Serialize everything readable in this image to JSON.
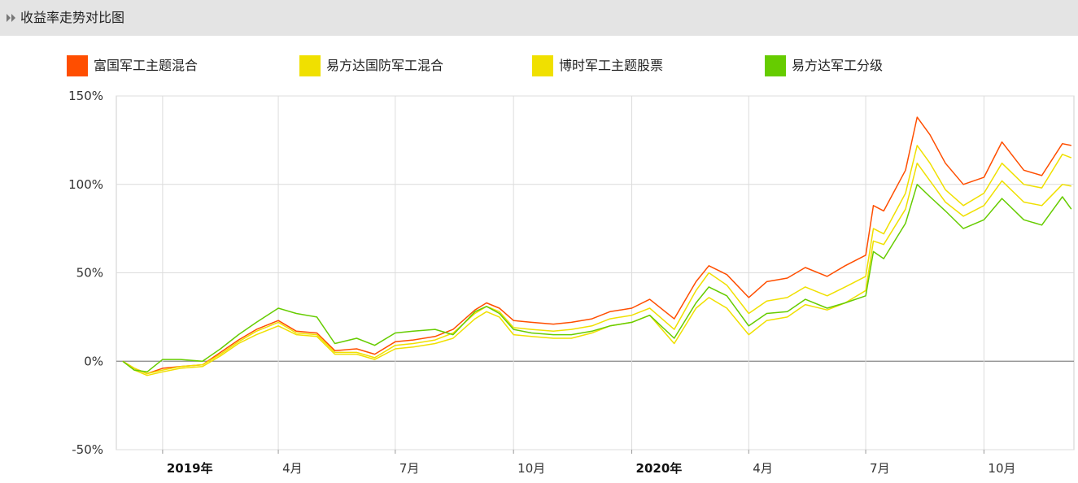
{
  "header": {
    "title": "收益率走势对比图",
    "icon": "double-chevron-right-icon"
  },
  "legend": [
    {
      "label": "富国军工主题混合",
      "color": "#ff4e00"
    },
    {
      "label": "易方达国防军工混合",
      "color": "#f0e000"
    },
    {
      "label": "博时军工主题股票",
      "color": "#f0e000"
    },
    {
      "label": "易方达军工分级",
      "color": "#66cc00"
    }
  ],
  "chart_data": {
    "type": "line",
    "ylim": [
      -50,
      150
    ],
    "y_ticks": [
      {
        "value": 150,
        "label": "150%"
      },
      {
        "value": 100,
        "label": "100%"
      },
      {
        "value": 50,
        "label": "50%"
      },
      {
        "value": 0,
        "label": "0%"
      },
      {
        "value": -50,
        "label": "-50%"
      }
    ],
    "xlim": [
      "2018-11-26",
      "2020-12-10"
    ],
    "x_ticks": [
      {
        "date": "2019-01-01",
        "label": "2019年",
        "bold": true
      },
      {
        "date": "2019-04-01",
        "label": "4月",
        "bold": false
      },
      {
        "date": "2019-07-01",
        "label": "7月",
        "bold": false
      },
      {
        "date": "2019-10-01",
        "label": "10月",
        "bold": false
      },
      {
        "date": "2020-01-01",
        "label": "2020年",
        "bold": true
      },
      {
        "date": "2020-04-01",
        "label": "4月",
        "bold": false
      },
      {
        "date": "2020-07-01",
        "label": "7月",
        "bold": false
      },
      {
        "date": "2020-10-01",
        "label": "10月",
        "bold": false
      }
    ],
    "grid": true,
    "series": [
      {
        "name": "富国军工主题混合",
        "color": "#ff4e00",
        "points": [
          [
            "2018-12-01",
            0
          ],
          [
            "2018-12-10",
            -4
          ],
          [
            "2018-12-20",
            -7
          ],
          [
            "2019-01-01",
            -4
          ],
          [
            "2019-01-15",
            -3
          ],
          [
            "2019-02-01",
            -2
          ],
          [
            "2019-02-15",
            5
          ],
          [
            "2019-03-01",
            12
          ],
          [
            "2019-03-15",
            18
          ],
          [
            "2019-04-01",
            23
          ],
          [
            "2019-04-15",
            17
          ],
          [
            "2019-05-01",
            16
          ],
          [
            "2019-05-15",
            6
          ],
          [
            "2019-06-01",
            7
          ],
          [
            "2019-06-15",
            4
          ],
          [
            "2019-07-01",
            11
          ],
          [
            "2019-07-15",
            12
          ],
          [
            "2019-08-01",
            14
          ],
          [
            "2019-08-15",
            18
          ],
          [
            "2019-09-01",
            29
          ],
          [
            "2019-09-10",
            33
          ],
          [
            "2019-09-20",
            30
          ],
          [
            "2019-10-01",
            23
          ],
          [
            "2019-10-15",
            22
          ],
          [
            "2019-11-01",
            21
          ],
          [
            "2019-11-15",
            22
          ],
          [
            "2019-12-01",
            24
          ],
          [
            "2019-12-15",
            28
          ],
          [
            "2020-01-01",
            30
          ],
          [
            "2020-01-15",
            35
          ],
          [
            "2020-02-03",
            24
          ],
          [
            "2020-02-20",
            45
          ],
          [
            "2020-03-01",
            54
          ],
          [
            "2020-03-15",
            49
          ],
          [
            "2020-04-01",
            36
          ],
          [
            "2020-04-15",
            45
          ],
          [
            "2020-05-01",
            47
          ],
          [
            "2020-05-15",
            53
          ],
          [
            "2020-06-01",
            48
          ],
          [
            "2020-06-15",
            54
          ],
          [
            "2020-07-01",
            60
          ],
          [
            "2020-07-07",
            88
          ],
          [
            "2020-07-15",
            85
          ],
          [
            "2020-08-01",
            108
          ],
          [
            "2020-08-10",
            138
          ],
          [
            "2020-08-20",
            128
          ],
          [
            "2020-09-01",
            112
          ],
          [
            "2020-09-15",
            100
          ],
          [
            "2020-10-01",
            104
          ],
          [
            "2020-10-15",
            124
          ],
          [
            "2020-11-01",
            108
          ],
          [
            "2020-11-15",
            105
          ],
          [
            "2020-12-01",
            123
          ],
          [
            "2020-12-08",
            122
          ]
        ]
      },
      {
        "name": "易方达国防军工混合",
        "color": "#f0e000",
        "points": [
          [
            "2018-12-01",
            0
          ],
          [
            "2018-12-10",
            -4
          ],
          [
            "2018-12-20",
            -7
          ],
          [
            "2019-01-01",
            -5
          ],
          [
            "2019-01-15",
            -3
          ],
          [
            "2019-02-01",
            -2
          ],
          [
            "2019-02-15",
            4
          ],
          [
            "2019-03-01",
            11
          ],
          [
            "2019-03-15",
            17
          ],
          [
            "2019-04-01",
            22
          ],
          [
            "2019-04-15",
            16
          ],
          [
            "2019-05-01",
            15
          ],
          [
            "2019-05-15",
            5
          ],
          [
            "2019-06-01",
            5
          ],
          [
            "2019-06-15",
            2
          ],
          [
            "2019-07-01",
            9
          ],
          [
            "2019-07-15",
            10
          ],
          [
            "2019-08-01",
            12
          ],
          [
            "2019-08-15",
            16
          ],
          [
            "2019-09-01",
            27
          ],
          [
            "2019-09-10",
            31
          ],
          [
            "2019-09-20",
            28
          ],
          [
            "2019-10-01",
            19
          ],
          [
            "2019-10-15",
            18
          ],
          [
            "2019-11-01",
            17
          ],
          [
            "2019-11-15",
            18
          ],
          [
            "2019-12-01",
            20
          ],
          [
            "2019-12-15",
            24
          ],
          [
            "2020-01-01",
            26
          ],
          [
            "2020-01-15",
            30
          ],
          [
            "2020-02-03",
            18
          ],
          [
            "2020-02-20",
            40
          ],
          [
            "2020-03-01",
            50
          ],
          [
            "2020-03-15",
            43
          ],
          [
            "2020-04-01",
            27
          ],
          [
            "2020-04-15",
            34
          ],
          [
            "2020-05-01",
            36
          ],
          [
            "2020-05-15",
            42
          ],
          [
            "2020-06-01",
            37
          ],
          [
            "2020-06-15",
            42
          ],
          [
            "2020-07-01",
            48
          ],
          [
            "2020-07-07",
            75
          ],
          [
            "2020-07-15",
            72
          ],
          [
            "2020-08-01",
            95
          ],
          [
            "2020-08-10",
            122
          ],
          [
            "2020-08-20",
            112
          ],
          [
            "2020-09-01",
            97
          ],
          [
            "2020-09-15",
            88
          ],
          [
            "2020-10-01",
            95
          ],
          [
            "2020-10-15",
            112
          ],
          [
            "2020-11-01",
            100
          ],
          [
            "2020-11-15",
            98
          ],
          [
            "2020-12-01",
            117
          ],
          [
            "2020-12-08",
            115
          ]
        ]
      },
      {
        "name": "博时军工主题股票",
        "color": "#f0e000",
        "points": [
          [
            "2018-12-01",
            0
          ],
          [
            "2018-12-10",
            -5
          ],
          [
            "2018-12-20",
            -8
          ],
          [
            "2019-01-01",
            -6
          ],
          [
            "2019-01-15",
            -4
          ],
          [
            "2019-02-01",
            -3
          ],
          [
            "2019-02-15",
            3
          ],
          [
            "2019-03-01",
            10
          ],
          [
            "2019-03-15",
            15
          ],
          [
            "2019-04-01",
            20
          ],
          [
            "2019-04-15",
            15
          ],
          [
            "2019-05-01",
            14
          ],
          [
            "2019-05-15",
            4
          ],
          [
            "2019-06-01",
            4
          ],
          [
            "2019-06-15",
            1
          ],
          [
            "2019-07-01",
            7
          ],
          [
            "2019-07-15",
            8
          ],
          [
            "2019-08-01",
            10
          ],
          [
            "2019-08-15",
            13
          ],
          [
            "2019-09-01",
            24
          ],
          [
            "2019-09-10",
            28
          ],
          [
            "2019-09-20",
            25
          ],
          [
            "2019-10-01",
            15
          ],
          [
            "2019-10-15",
            14
          ],
          [
            "2019-11-01",
            13
          ],
          [
            "2019-11-15",
            13
          ],
          [
            "2019-12-01",
            16
          ],
          [
            "2019-12-15",
            20
          ],
          [
            "2020-01-01",
            22
          ],
          [
            "2020-01-15",
            26
          ],
          [
            "2020-02-03",
            10
          ],
          [
            "2020-02-20",
            30
          ],
          [
            "2020-03-01",
            36
          ],
          [
            "2020-03-15",
            30
          ],
          [
            "2020-04-01",
            15
          ],
          [
            "2020-04-15",
            23
          ],
          [
            "2020-05-01",
            25
          ],
          [
            "2020-05-15",
            32
          ],
          [
            "2020-06-01",
            29
          ],
          [
            "2020-06-15",
            33
          ],
          [
            "2020-07-01",
            40
          ],
          [
            "2020-07-07",
            68
          ],
          [
            "2020-07-15",
            66
          ],
          [
            "2020-08-01",
            86
          ],
          [
            "2020-08-10",
            112
          ],
          [
            "2020-08-20",
            102
          ],
          [
            "2020-09-01",
            90
          ],
          [
            "2020-09-15",
            82
          ],
          [
            "2020-10-01",
            88
          ],
          [
            "2020-10-15",
            102
          ],
          [
            "2020-11-01",
            90
          ],
          [
            "2020-11-15",
            88
          ],
          [
            "2020-12-01",
            100
          ],
          [
            "2020-12-08",
            99
          ]
        ]
      },
      {
        "name": "易方达军工分级",
        "color": "#66cc00",
        "points": [
          [
            "2018-12-01",
            0
          ],
          [
            "2018-12-10",
            -5
          ],
          [
            "2018-12-20",
            -6
          ],
          [
            "2019-01-01",
            1
          ],
          [
            "2019-01-15",
            1
          ],
          [
            "2019-02-01",
            0
          ],
          [
            "2019-02-15",
            7
          ],
          [
            "2019-03-01",
            15
          ],
          [
            "2019-03-15",
            22
          ],
          [
            "2019-04-01",
            30
          ],
          [
            "2019-04-15",
            27
          ],
          [
            "2019-05-01",
            25
          ],
          [
            "2019-05-15",
            10
          ],
          [
            "2019-06-01",
            13
          ],
          [
            "2019-06-15",
            9
          ],
          [
            "2019-07-01",
            16
          ],
          [
            "2019-07-15",
            17
          ],
          [
            "2019-08-01",
            18
          ],
          [
            "2019-08-15",
            15
          ],
          [
            "2019-09-01",
            28
          ],
          [
            "2019-09-10",
            31
          ],
          [
            "2019-09-20",
            27
          ],
          [
            "2019-10-01",
            18
          ],
          [
            "2019-10-15",
            16
          ],
          [
            "2019-11-01",
            15
          ],
          [
            "2019-11-15",
            15
          ],
          [
            "2019-12-01",
            17
          ],
          [
            "2019-12-15",
            20
          ],
          [
            "2020-01-01",
            22
          ],
          [
            "2020-01-15",
            26
          ],
          [
            "2020-02-03",
            13
          ],
          [
            "2020-02-20",
            33
          ],
          [
            "2020-03-01",
            42
          ],
          [
            "2020-03-15",
            37
          ],
          [
            "2020-04-01",
            20
          ],
          [
            "2020-04-15",
            27
          ],
          [
            "2020-05-01",
            28
          ],
          [
            "2020-05-15",
            35
          ],
          [
            "2020-06-01",
            30
          ],
          [
            "2020-06-15",
            33
          ],
          [
            "2020-07-01",
            37
          ],
          [
            "2020-07-07",
            62
          ],
          [
            "2020-07-15",
            58
          ],
          [
            "2020-08-01",
            78
          ],
          [
            "2020-08-10",
            100
          ],
          [
            "2020-08-20",
            93
          ],
          [
            "2020-09-01",
            85
          ],
          [
            "2020-09-15",
            75
          ],
          [
            "2020-10-01",
            80
          ],
          [
            "2020-10-15",
            92
          ],
          [
            "2020-11-01",
            80
          ],
          [
            "2020-11-15",
            77
          ],
          [
            "2020-12-01",
            93
          ],
          [
            "2020-12-08",
            86
          ]
        ]
      }
    ]
  }
}
